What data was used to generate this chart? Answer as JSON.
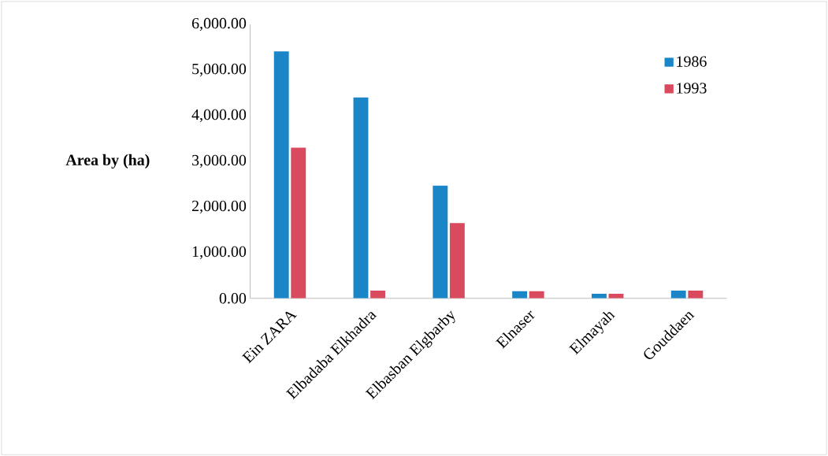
{
  "chart_data": {
    "type": "bar",
    "ylabel": "Area by (ha)",
    "categories": [
      "Ein ZARA",
      "Elbadaba Elkhadra",
      "Elbasban Elgbarby",
      "Elnaser",
      "Elmayah",
      "Gouddaen"
    ],
    "series": [
      {
        "name": "1986",
        "color": "#1a86c8",
        "values": [
          5410,
          4400,
          2470,
          155,
          100,
          170
        ]
      },
      {
        "name": "1993",
        "color": "#d94a5e",
        "values": [
          3300,
          170,
          1650,
          155,
          100,
          170
        ]
      }
    ],
    "ylim": [
      0,
      6000
    ],
    "yticks": [
      {
        "value": 0,
        "label": "0.00"
      },
      {
        "value": 1000,
        "label": "1,000.00"
      },
      {
        "value": 2000,
        "label": "2,000.00"
      },
      {
        "value": 3000,
        "label": "3,000.00"
      },
      {
        "value": 4000,
        "label": "4,000.00"
      },
      {
        "value": 5000,
        "label": "5,000.00"
      },
      {
        "value": 6000,
        "label": "6,000.00"
      }
    ],
    "grid": false,
    "legend": "top right"
  }
}
